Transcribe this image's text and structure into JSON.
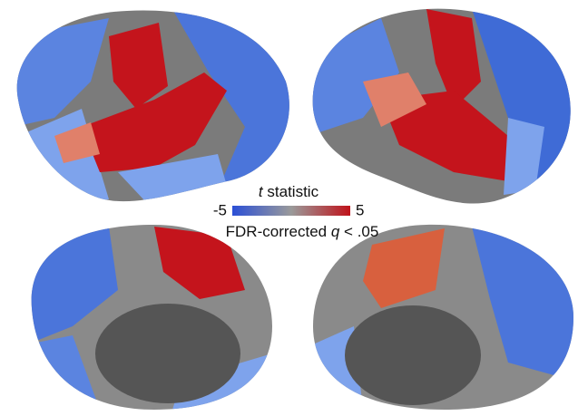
{
  "colorbar": {
    "label_var": "t",
    "label": "statistic",
    "ticks": [
      -5,
      5
    ],
    "note": "FDR-corrected",
    "note_var": "q",
    "note_threshold": "< .05"
  }
}
